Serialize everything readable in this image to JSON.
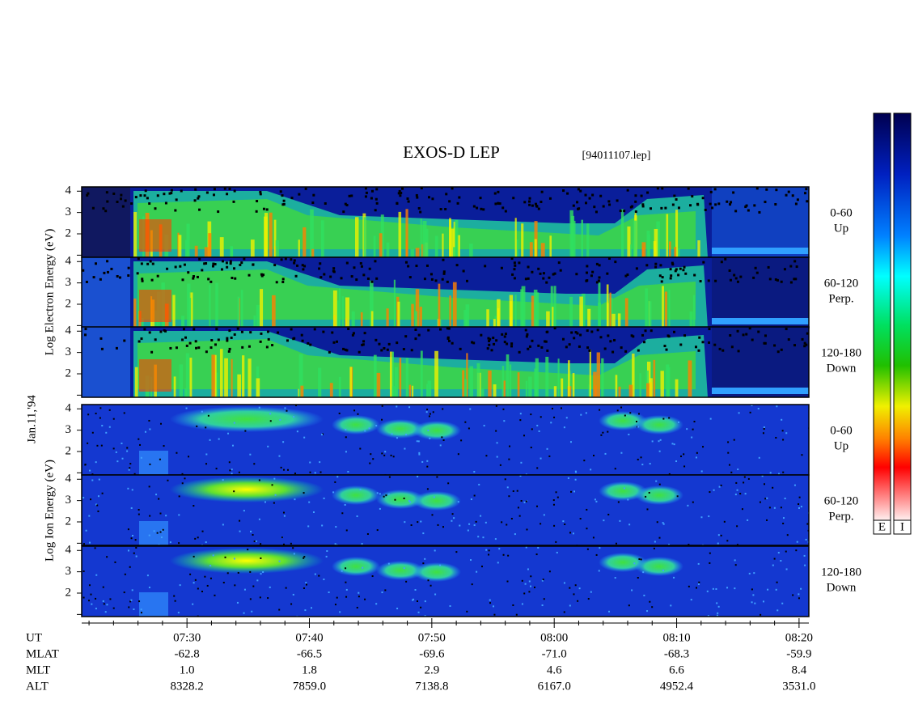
{
  "chart_data": {
    "type": "spectrogram",
    "title": "EXOS-D LEP",
    "subtitle": "[94011107.lep]",
    "date_label": "Jan.11,'94",
    "groups": [
      {
        "ylabel": "Log Electron Energy (eV)",
        "panels": [
          [
            "0-60",
            "Up"
          ],
          [
            "60-120",
            "Perp."
          ],
          [
            "120-180",
            "Down"
          ]
        ]
      },
      {
        "ylabel": "Log Ion Energy (eV)",
        "panels": [
          [
            "0-60",
            "Up"
          ],
          [
            "60-120",
            "Perp."
          ],
          [
            "120-180",
            "Down"
          ]
        ]
      }
    ],
    "ylim": [
      0.9,
      4.2
    ],
    "yticks": [
      2,
      3,
      4
    ],
    "yminorticks": [
      1
    ],
    "xlim": [
      441.4,
      500.8
    ],
    "xticks": [
      {
        "value": 450,
        "label": "07:30"
      },
      {
        "value": 460,
        "label": "07:40"
      },
      {
        "value": 470,
        "label": "07:50"
      },
      {
        "value": 480,
        "label": "08:00"
      },
      {
        "value": 490,
        "label": "08:10"
      },
      {
        "value": 500,
        "label": "08:20"
      }
    ],
    "xminorticks": [
      442,
      444,
      446,
      448,
      452,
      454,
      456,
      458,
      462,
      464,
      466,
      468,
      472,
      474,
      476,
      478,
      482,
      484,
      486,
      488,
      492,
      494,
      496,
      498
    ],
    "xlabel": "UT",
    "ephemeris": [
      {
        "name": "MLAT",
        "labels": [
          "-62.8",
          "-66.5",
          "-69.6",
          "-71.0",
          "-68.3",
          "-59.9"
        ]
      },
      {
        "name": "MLT",
        "labels": [
          "1.0",
          "1.8",
          "2.9",
          "4.6",
          "6.6",
          "8.4"
        ]
      },
      {
        "name": "ALT",
        "labels": [
          "8328.2",
          "7859.0",
          "7138.8",
          "6167.0",
          "4952.4",
          "3531.0"
        ]
      }
    ],
    "colorbars": [
      "E",
      "I"
    ]
  }
}
